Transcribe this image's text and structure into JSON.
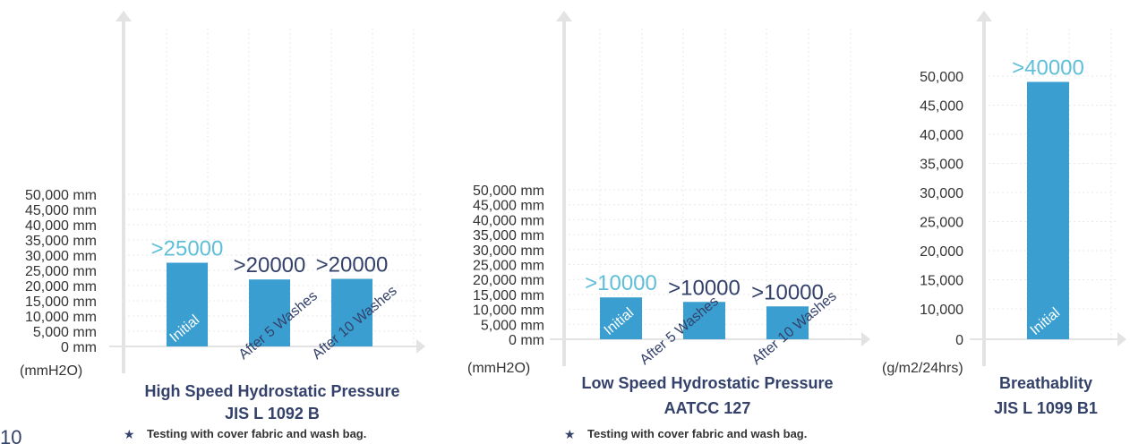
{
  "colors": {
    "bar": "#3a9fd0",
    "axis": "#e3e3e3",
    "grid": "#e9e9e9",
    "title": "#34416a",
    "label_highlight": "#5fbfd9",
    "label_dark": "#34416a",
    "bar_text": "#ffffff"
  },
  "page_number": "10",
  "notes": [
    {
      "text": "Testing with cover fabric and wash bag.",
      "icon": "star-icon"
    },
    {
      "text": "Testing with cover fabric and wash bag.",
      "icon": "star-icon"
    }
  ],
  "chart_data": [
    {
      "type": "bar",
      "title_lines": [
        "High Speed Hydrostatic Pressure",
        "JIS L 1092 B"
      ],
      "unit_label": "(mmH2O)",
      "ylim": [
        0,
        50000
      ],
      "yticks": [
        0,
        5000,
        10000,
        15000,
        20000,
        25000,
        30000,
        35000,
        40000,
        45000,
        50000
      ],
      "ytick_labels": [
        "0 mm",
        "5,000 mm",
        "10,000 mm",
        "15,000 mm",
        "20,000 mm",
        "25,000 mm",
        "30,000 mm",
        "35,000 mm",
        "40,000 mm",
        "45,000 mm",
        "50,000 mm"
      ],
      "grid": true,
      "categories": [
        "Initial",
        "After 5 Washes",
        "After 10 Washes"
      ],
      "values": [
        27500,
        22000,
        22200
      ],
      "value_labels": [
        ">25000",
        ">20000",
        ">20000"
      ],
      "label_highlight": [
        true,
        false,
        false
      ]
    },
    {
      "type": "bar",
      "title_lines": [
        "Low Speed Hydrostatic Pressure",
        "AATCC 127"
      ],
      "unit_label": "(mmH2O)",
      "ylim": [
        0,
        50000
      ],
      "yticks": [
        0,
        5000,
        10000,
        15000,
        20000,
        25000,
        30000,
        35000,
        40000,
        45000,
        50000
      ],
      "ytick_labels": [
        "0 mm",
        "5,000 mm",
        "10,000 mm",
        "15,000 mm",
        "20,000 mm",
        "25,000 mm",
        "30,000 mm",
        "35,000 mm",
        "40,000 mm",
        "45,000 mm",
        "50,000 mm"
      ],
      "grid": true,
      "categories": [
        "Initial",
        "After 5 Washes",
        "After 10 Washes"
      ],
      "values": [
        14000,
        12500,
        11000
      ],
      "value_labels": [
        ">10000",
        ">10000",
        ">10000"
      ],
      "label_highlight": [
        true,
        false,
        false
      ]
    },
    {
      "type": "bar",
      "title_lines": [
        "Breathablity",
        "JIS L 1099 B1"
      ],
      "unit_label": "(g/m2/24hrs)",
      "ylim": [
        0,
        50000
      ],
      "yticks": [
        0,
        10000,
        15000,
        20000,
        25000,
        30000,
        35000,
        40000,
        45000,
        50000
      ],
      "ytick_labels": [
        "0",
        "10,000",
        "15,000",
        "20,000",
        "25,000",
        "30,000",
        "35,000",
        "40,000",
        "45,000",
        "50,000"
      ],
      "grid": true,
      "categories": [
        "Initial"
      ],
      "values": [
        49000
      ],
      "value_labels": [
        ">40000"
      ],
      "label_highlight": [
        true
      ]
    }
  ]
}
